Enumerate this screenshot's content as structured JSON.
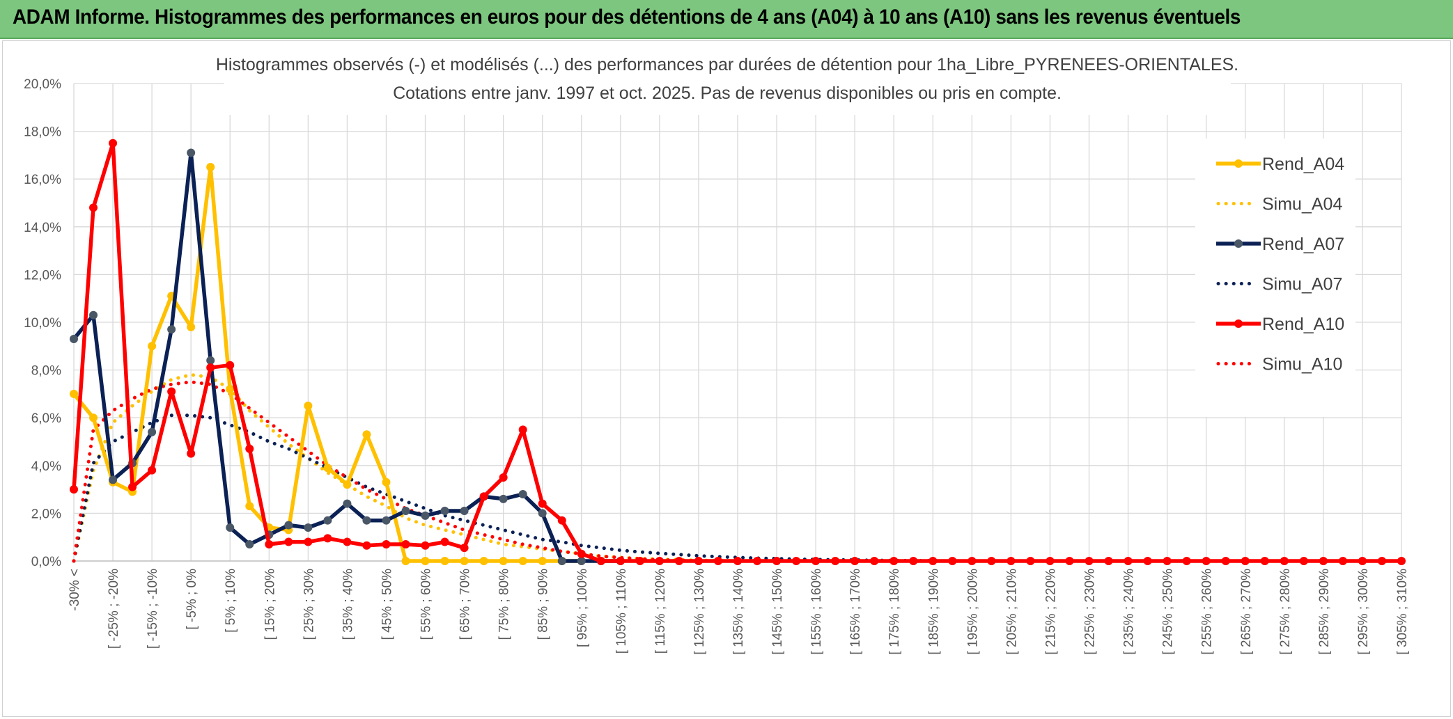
{
  "banner": {
    "title": "ADAM Informe. Histogrammes des performances en euros pour des détentions de 4 ans (A04) à 10 ans (A10) sans les revenus éventuels"
  },
  "chart_data": {
    "type": "line",
    "title": "Histogrammes observés (-) et modélisés (...) des performances par durées de détention pour 1ha_Libre_PYRENEES-ORIENTALES.",
    "subtitle": "Cotations entre janv. 1997 et oct. 2025. Pas de revenus disponibles ou pris en compte.",
    "xlabel": "",
    "ylabel": "",
    "ylim": [
      0,
      20
    ],
    "yticks": [
      "0,0%",
      "2,0%",
      "4,0%",
      "6,0%",
      "8,0%",
      "10,0%",
      "12,0%",
      "14,0%",
      "16,0%",
      "18,0%",
      "20,0%"
    ],
    "grid": true,
    "legend_position": "right",
    "x_tick_labels": [
      "-30% <",
      "[ -25% ; -20%",
      "[ -15% ; -10%",
      "[ -5% ; 0%",
      "[ 5% ; 10%",
      "[ 15% ; 20%",
      "[ 25% ; 30%",
      "[ 35% ; 40%",
      "[ 45% ; 50%",
      "[ 55% ; 60%",
      "[ 65% ; 70%",
      "[ 75% ; 80%",
      "[ 85% ; 90%",
      "[ 95% ; 100%",
      "[ 105% ; 110%",
      "[ 115% ; 120%",
      "[ 125% ; 130%",
      "[ 135% ; 140%",
      "[ 145% ; 150%",
      "[ 155% ; 160%",
      "[ 165% ; 170%",
      "[ 175% ; 180%",
      "[ 185% ; 190%",
      "[ 195% ; 200%",
      "[ 205% ; 210%",
      "[ 215% ; 220%",
      "[ 225% ; 230%",
      "[ 235% ; 240%",
      "[ 245% ; 250%",
      "[ 255% ; 260%",
      "[ 265% ; 270%",
      "[ 275% ; 280%",
      "[ 285% ; 290%",
      "[ 295% ; 300%",
      "[ 305% ; 310%"
    ],
    "n_categories": 69,
    "series": [
      {
        "name": "Rend_A04",
        "style": "solid",
        "marker": "circle",
        "color": "#ffc000",
        "marker_color": "#ffc000",
        "values": [
          7.0,
          6.0,
          3.3,
          2.9,
          9.0,
          11.1,
          9.8,
          16.5,
          7.2,
          2.3,
          1.4,
          1.3,
          6.5,
          3.9,
          3.2,
          5.3,
          3.3,
          0.0,
          0.0,
          0.0,
          0.0,
          0.0,
          0.0,
          0.0,
          0.0,
          0.0,
          0.0
        ]
      },
      {
        "name": "Simu_A04",
        "style": "dotted",
        "marker": "none",
        "color": "#ffc000",
        "values": [
          0.0,
          3.8,
          5.8,
          6.5,
          7.1,
          7.6,
          7.8,
          7.7,
          7.2,
          6.3,
          5.6,
          4.9,
          4.3,
          3.7,
          3.2,
          2.7,
          2.3,
          1.8,
          1.5,
          1.3,
          1.1,
          0.9,
          0.7,
          0.6,
          0.5,
          0.4,
          0.3,
          0.2,
          0.15,
          0.1,
          0.08,
          0.05,
          0.03,
          0.02,
          0.01
        ]
      },
      {
        "name": "Rend_A07",
        "style": "solid",
        "marker": "circle",
        "color": "#0b2155",
        "marker_color": "#4a5766",
        "values": [
          9.3,
          10.3,
          3.4,
          4.1,
          5.4,
          9.7,
          17.1,
          8.4,
          1.4,
          0.7,
          1.1,
          1.5,
          1.4,
          1.7,
          2.4,
          1.7,
          1.7,
          2.1,
          1.9,
          2.1,
          2.1,
          2.7,
          2.6,
          2.8,
          2.0,
          0.0,
          0.0,
          0.0,
          0.0
        ]
      },
      {
        "name": "Simu_A07",
        "style": "dotted",
        "marker": "none",
        "color": "#0b2155",
        "values": [
          0.0,
          4.1,
          5.0,
          5.4,
          5.8,
          6.1,
          6.1,
          6.0,
          5.7,
          5.4,
          5.0,
          4.7,
          4.3,
          3.9,
          3.5,
          3.1,
          2.8,
          2.5,
          2.2,
          1.9,
          1.7,
          1.5,
          1.3,
          1.1,
          0.9,
          0.8,
          0.65,
          0.55,
          0.45,
          0.38,
          0.32,
          0.27,
          0.22,
          0.18,
          0.15,
          0.12,
          0.1,
          0.08,
          0.06,
          0.05,
          0.04,
          0.03,
          0.02,
          0.015,
          0.01,
          0.0
        ]
      },
      {
        "name": "Rend_A10",
        "style": "solid",
        "marker": "circle",
        "color": "#ff0000",
        "marker_color": "#ff0000",
        "values": [
          3.0,
          14.8,
          17.5,
          3.1,
          3.8,
          7.1,
          4.5,
          8.1,
          8.2,
          4.7,
          0.7,
          0.8,
          0.8,
          0.95,
          0.8,
          0.65,
          0.7,
          0.7,
          0.65,
          0.8,
          0.55,
          2.7,
          3.5,
          5.5,
          2.4,
          1.7,
          0.3,
          0.0,
          0.0,
          0.0,
          0.0,
          0.0,
          0.0,
          0.0,
          0.0,
          0.0,
          0.0,
          0.0,
          0.0,
          0.0,
          0.0,
          0.0,
          0.0,
          0.0,
          0.0,
          0.0,
          0.0,
          0.0,
          0.0,
          0.0,
          0.0,
          0.0,
          0.0,
          0.0,
          0.0,
          0.0,
          0.0,
          0.0,
          0.0,
          0.0,
          0.0,
          0.0,
          0.0,
          0.0,
          0.0,
          0.0,
          0.0,
          0.0,
          0.0
        ]
      },
      {
        "name": "Simu_A10",
        "style": "dotted",
        "marker": "none",
        "color": "#ff0000",
        "values": [
          0.0,
          5.5,
          6.3,
          6.8,
          7.2,
          7.4,
          7.5,
          7.4,
          7.0,
          6.4,
          5.8,
          5.2,
          4.6,
          4.0,
          3.5,
          3.0,
          2.6,
          2.2,
          1.9,
          1.6,
          1.3,
          1.1,
          0.9,
          0.7,
          0.55,
          0.4,
          0.3,
          0.2,
          0.14,
          0.09,
          0.05,
          0.03,
          0.01,
          0.0
        ]
      }
    ]
  }
}
